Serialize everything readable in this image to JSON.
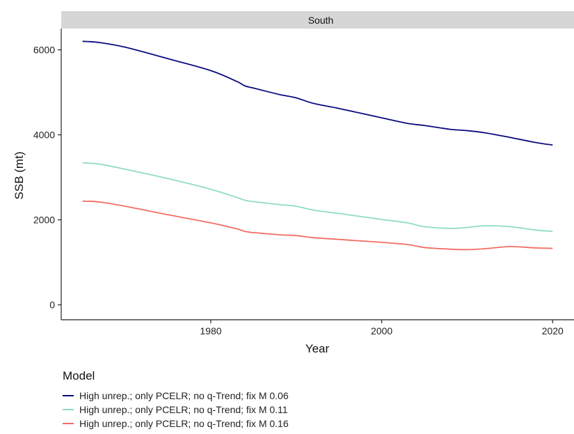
{
  "chart_data": {
    "type": "line",
    "facet_label": "South",
    "xlabel": "Year",
    "ylabel": "SSB (mt)",
    "xlim": [
      1962.5,
      2022.5
    ],
    "ylim": [
      -350,
      6500
    ],
    "x_ticks": [
      1980,
      2000,
      2020
    ],
    "y_ticks": [
      0,
      2000,
      4000,
      6000
    ],
    "legend_title": "Model",
    "legend_position": "bottom-left",
    "grid": false,
    "x": [
      1965,
      1967,
      1970,
      1975,
      1980,
      1983,
      1984,
      1985,
      1988,
      1990,
      1992,
      1995,
      2000,
      2003,
      2005,
      2008,
      2010,
      2012,
      2015,
      2018,
      2020
    ],
    "series": [
      {
        "name": "High unrep.; only PCELR; no q-Trend; fix M 0.06",
        "color": "#0a0a80",
        "values": [
          6200,
          6170,
          6060,
          5790,
          5510,
          5260,
          5150,
          5100,
          4950,
          4870,
          4740,
          4620,
          4400,
          4270,
          4220,
          4130,
          4100,
          4050,
          3940,
          3820,
          3760
        ]
      },
      {
        "name": "High unrep.; only PCELR; no q-Trend; fix M 0.11",
        "color": "#90dcc6",
        "values": [
          3340,
          3310,
          3190,
          2970,
          2720,
          2530,
          2460,
          2430,
          2360,
          2320,
          2230,
          2150,
          2010,
          1930,
          1840,
          1800,
          1820,
          1860,
          1840,
          1760,
          1730
        ]
      },
      {
        "name": "High unrep.; only PCELR; no q-Trend; fix M 0.16",
        "color": "#f36d64",
        "values": [
          2440,
          2420,
          2320,
          2120,
          1930,
          1790,
          1730,
          1700,
          1650,
          1630,
          1580,
          1540,
          1470,
          1420,
          1350,
          1310,
          1300,
          1320,
          1370,
          1340,
          1330
        ]
      }
    ]
  }
}
